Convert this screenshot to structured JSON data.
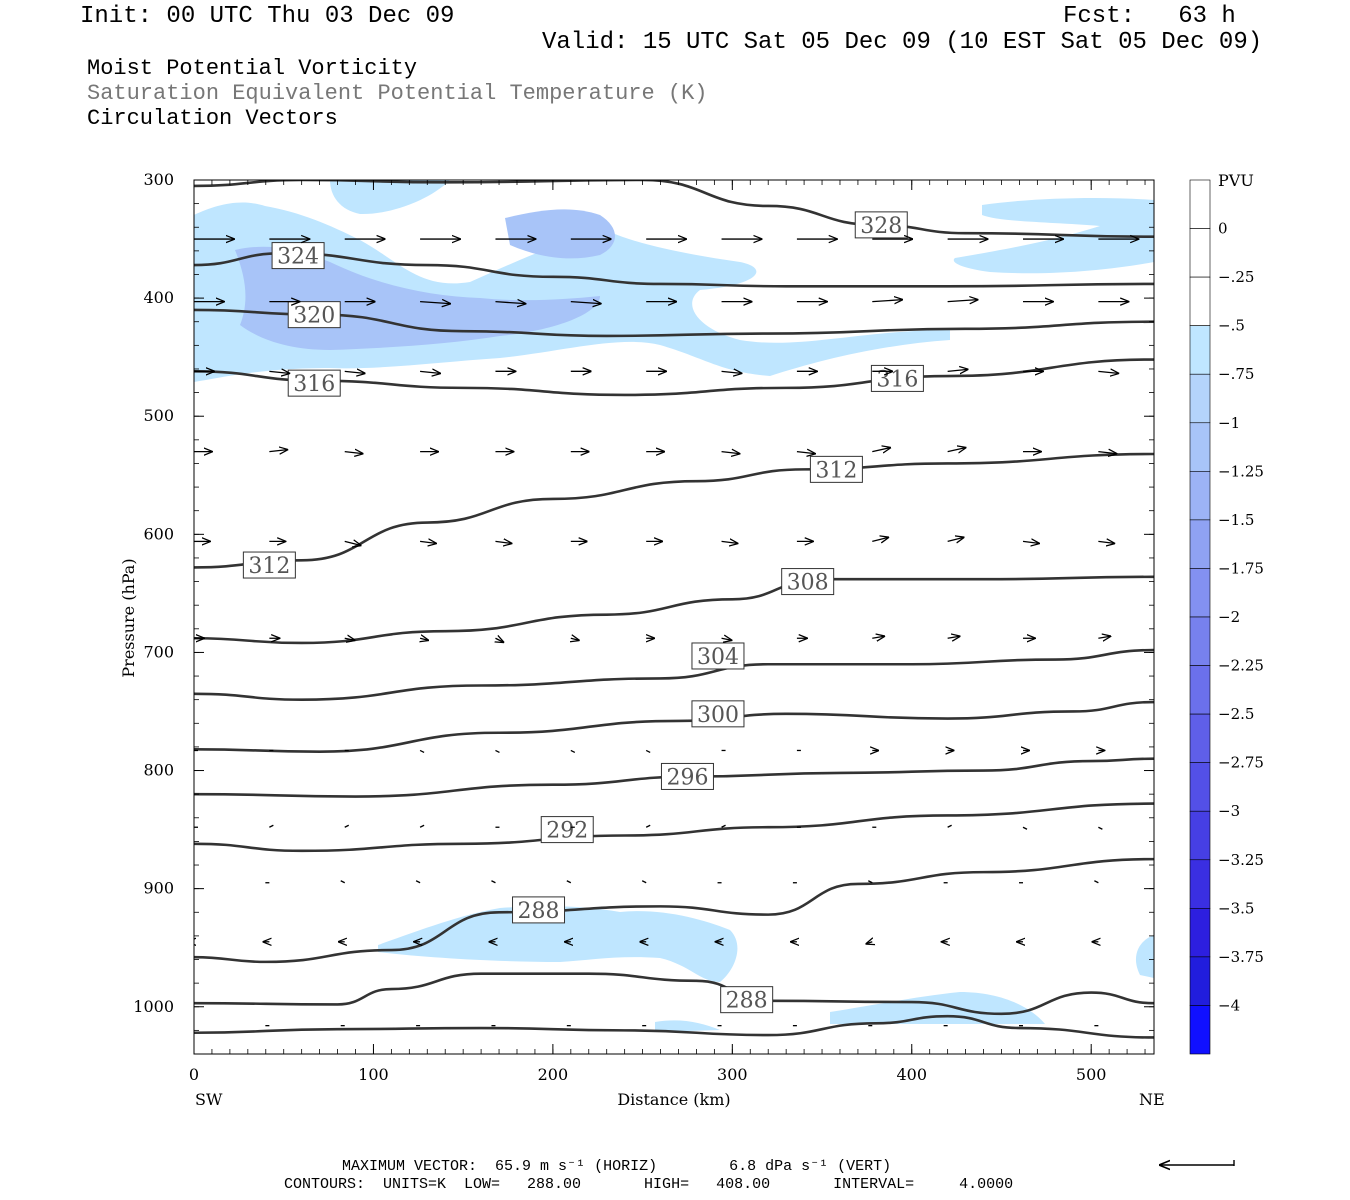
{
  "header": {
    "init": "Init: 00 UTC Thu 03 Dec 09",
    "fcst": "Fcst:   63 h",
    "valid": "Valid: 15 UTC Sat 05 Dec 09 (10 EST Sat 05 Dec 09)",
    "field1": "Moist Potential Vorticity",
    "field2": "Saturation Equivalent Potential Temperature (K)",
    "field3": "Circulation Vectors"
  },
  "footer": {
    "max_vector": "MAXIMUM VECTOR:  65.9 m s⁻¹ (HORIZ)        6.8 dPa s⁻¹ (VERT)",
    "contours": "CONTOURS:  UNITS=K  LOW=   288.00       HIGH=   408.00       INTERVAL=     4.0000"
  },
  "chart_data": {
    "type": "cross-section",
    "xlabel": "Distance (km)",
    "ylabel": "Pressure (hPa)",
    "xlim": [
      0,
      535
    ],
    "ylim": [
      1040,
      300
    ],
    "x_ticks": [
      0,
      100,
      200,
      300,
      400,
      500
    ],
    "y_ticks": [
      300,
      400,
      500,
      600,
      700,
      800,
      900,
      1000
    ],
    "x_end_labels": {
      "left": "SW",
      "right": "NE"
    },
    "colorbar": {
      "title": "PVU",
      "levels": [
        "0",
        "-.25",
        "-.5",
        "-.75",
        "-1",
        "-1.25",
        "-1.5",
        "-1.75",
        "-2",
        "-2.25",
        "-2.5",
        "-2.75",
        "-3",
        "-3.25",
        "-3.5",
        "-3.75",
        "-4"
      ],
      "colors": [
        "#ffffff",
        "#ffffff",
        "#bfe6ff",
        "#b4d4fb",
        "#a8c4f8",
        "#9cb3f6",
        "#8fa2f3",
        "#8391f1",
        "#7781ee",
        "#6b70ec",
        "#5f5fe9",
        "#5350e7",
        "#463fe4",
        "#3a2fe2",
        "#2d1fdf",
        "#211ddd",
        "#1010ff"
      ]
    },
    "contours": [
      {
        "label": "328",
        "points": [
          [
            0,
            305
          ],
          [
            60,
            300
          ],
          [
            140,
            302
          ],
          [
            250,
            300
          ],
          [
            320,
            322
          ],
          [
            380,
            338
          ],
          [
            430,
            345
          ],
          [
            535,
            348
          ]
        ]
      },
      {
        "label": "324",
        "points": [
          [
            0,
            372
          ],
          [
            50,
            362
          ],
          [
            130,
            372
          ],
          [
            200,
            382
          ],
          [
            260,
            388
          ],
          [
            330,
            390
          ],
          [
            420,
            390
          ],
          [
            535,
            388
          ]
        ]
      },
      {
        "label": "320",
        "points": [
          [
            0,
            410
          ],
          [
            70,
            414
          ],
          [
            150,
            428
          ],
          [
            230,
            432
          ],
          [
            320,
            430
          ],
          [
            430,
            426
          ],
          [
            535,
            420
          ]
        ]
      },
      {
        "label": "316",
        "points": [
          [
            0,
            462
          ],
          [
            70,
            470
          ],
          [
            150,
            476
          ],
          [
            240,
            482
          ],
          [
            330,
            476
          ],
          [
            420,
            466
          ],
          [
            535,
            452
          ]
        ]
      },
      {
        "label": "312",
        "points": [
          [
            0,
            628
          ],
          [
            60,
            622
          ],
          [
            130,
            590
          ],
          [
            200,
            570
          ],
          [
            280,
            555
          ],
          [
            340,
            545
          ],
          [
            420,
            540
          ],
          [
            535,
            532
          ]
        ]
      },
      {
        "label": "308",
        "points": [
          [
            0,
            688
          ],
          [
            60,
            692
          ],
          [
            140,
            682
          ],
          [
            230,
            668
          ],
          [
            300,
            655
          ],
          [
            350,
            638
          ],
          [
            440,
            638
          ],
          [
            535,
            636
          ]
        ]
      },
      {
        "label": "304",
        "points": [
          [
            0,
            735
          ],
          [
            60,
            740
          ],
          [
            160,
            728
          ],
          [
            260,
            722
          ],
          [
            320,
            710
          ],
          [
            400,
            710
          ],
          [
            480,
            706
          ],
          [
            535,
            698
          ]
        ]
      },
      {
        "label": "300",
        "points": [
          [
            0,
            782
          ],
          [
            70,
            784
          ],
          [
            170,
            768
          ],
          [
            270,
            758
          ],
          [
            330,
            752
          ],
          [
            420,
            756
          ],
          [
            490,
            750
          ],
          [
            535,
            742
          ]
        ]
      },
      {
        "label": "296",
        "points": [
          [
            0,
            820
          ],
          [
            90,
            822
          ],
          [
            200,
            812
          ],
          [
            280,
            805
          ],
          [
            360,
            802
          ],
          [
            440,
            800
          ],
          [
            500,
            792
          ],
          [
            535,
            790
          ]
        ]
      },
      {
        "label": "292",
        "points": [
          [
            0,
            862
          ],
          [
            60,
            868
          ],
          [
            150,
            862
          ],
          [
            240,
            855
          ],
          [
            320,
            848
          ],
          [
            420,
            838
          ],
          [
            535,
            828
          ]
        ]
      },
      {
        "label": "288",
        "points": [
          [
            0,
            958
          ],
          [
            40,
            962
          ],
          [
            110,
            952
          ],
          [
            170,
            920
          ],
          [
            260,
            915
          ],
          [
            320,
            922
          ],
          [
            370,
            896
          ],
          [
            440,
            886
          ],
          [
            535,
            875
          ]
        ]
      },
      {
        "label": "288",
        "points": [
          [
            0,
            997
          ],
          [
            80,
            998
          ],
          [
            110,
            985
          ],
          [
            160,
            972
          ],
          [
            220,
            972
          ],
          [
            280,
            978
          ],
          [
            320,
            995
          ],
          [
            400,
            996
          ],
          [
            450,
            1006
          ],
          [
            500,
            988
          ],
          [
            535,
            997
          ]
        ]
      },
      {
        "label": "",
        "points": [
          [
            0,
            1022
          ],
          [
            80,
            1019
          ],
          [
            160,
            1018
          ],
          [
            240,
            1020
          ],
          [
            320,
            1024
          ],
          [
            380,
            1014
          ],
          [
            420,
            1008
          ],
          [
            460,
            1018
          ],
          [
            535,
            1026
          ]
        ]
      }
    ],
    "vectors_rows": [
      {
        "p": 350,
        "u": [
          40,
          40,
          40,
          40,
          40,
          40,
          40,
          40,
          40,
          40,
          40,
          40,
          40
        ],
        "w": [
          0,
          0,
          0,
          0,
          0,
          0,
          0,
          0,
          0,
          0,
          0,
          0,
          0
        ]
      },
      {
        "p": 403,
        "u": [
          30,
          30,
          30,
          30,
          30,
          30,
          30,
          30,
          30,
          30,
          30,
          30,
          30
        ],
        "w": [
          0,
          0,
          0,
          -1,
          -1,
          -1,
          0,
          0,
          0,
          1,
          1,
          0,
          0
        ]
      },
      {
        "p": 462,
        "u": [
          20,
          20,
          20,
          20,
          20,
          20,
          20,
          20,
          20,
          20,
          20,
          20,
          20
        ],
        "w": [
          0,
          -1,
          -1,
          -1,
          0,
          0,
          0,
          -1,
          0,
          0,
          1,
          0,
          -1
        ]
      },
      {
        "p": 530,
        "u": [
          18,
          18,
          18,
          18,
          18,
          18,
          18,
          18,
          18,
          18,
          18,
          18,
          18
        ],
        "w": [
          0,
          1,
          -1,
          0,
          0,
          0,
          0,
          -1,
          -1,
          2,
          2,
          0,
          -1
        ]
      },
      {
        "p": 606,
        "u": [
          16,
          16,
          16,
          16,
          16,
          16,
          16,
          16,
          16,
          16,
          16,
          16,
          16
        ],
        "w": [
          0,
          0,
          -2,
          -1,
          -1,
          0,
          0,
          -1,
          0,
          2,
          2,
          -1,
          -1
        ]
      },
      {
        "p": 688,
        "u": [
          10,
          10,
          10,
          8,
          8,
          8,
          8,
          10,
          10,
          12,
          12,
          12,
          12
        ],
        "w": [
          0,
          0,
          -1,
          -1,
          -2,
          -1,
          0,
          -1,
          0,
          1,
          1,
          0,
          1
        ]
      },
      {
        "p": 783,
        "u": [
          4,
          4,
          4,
          4,
          4,
          4,
          4,
          4,
          4,
          6,
          6,
          6,
          6
        ],
        "w": [
          0,
          0,
          0,
          -1,
          -1,
          -1,
          -1,
          0,
          0,
          0,
          0,
          0,
          0
        ]
      },
      {
        "p": 848,
        "u": [
          2,
          2,
          2,
          2,
          2,
          2,
          2,
          2,
          2,
          2,
          2,
          2,
          2
        ],
        "w": [
          0,
          1,
          1,
          1,
          0,
          0,
          1,
          1,
          0,
          0,
          1,
          -1,
          -1
        ]
      },
      {
        "p": 895,
        "u": [
          -4,
          -4,
          -4,
          -4,
          -4,
          -4,
          -4,
          -4,
          -4,
          -4,
          -4,
          -4,
          -4
        ],
        "w": [
          0,
          0,
          1,
          1,
          1,
          1,
          1,
          0,
          0,
          1,
          0,
          0,
          1
        ]
      },
      {
        "p": 945,
        "u": [
          -6,
          -6,
          -6,
          -6,
          -6,
          -6,
          -6,
          -6,
          -6,
          -6,
          -6,
          -6,
          -6
        ],
        "w": [
          0,
          0,
          0,
          0,
          0,
          0,
          0,
          0,
          0,
          -1,
          0,
          0,
          0
        ]
      },
      {
        "p": 1016,
        "u": [
          -4,
          -4,
          -4,
          -4,
          -4,
          -4,
          -4,
          -4,
          -4,
          -4,
          -4,
          -4,
          -4
        ],
        "w": [
          0,
          0,
          0,
          0,
          0,
          0,
          0,
          0,
          0,
          0,
          0,
          0,
          0
        ]
      }
    ]
  }
}
